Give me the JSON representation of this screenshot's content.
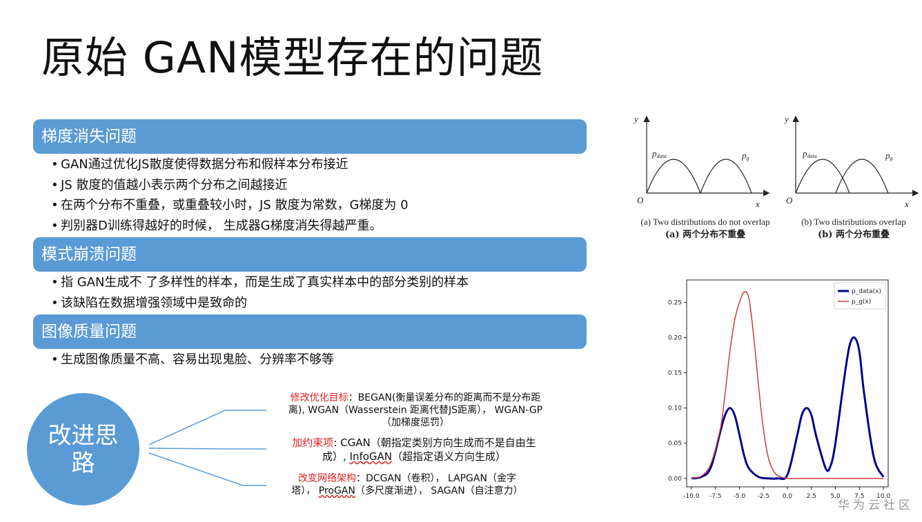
{
  "title": "原始 GAN模型存在的问题",
  "sections": [
    {
      "heading": "梯度消失问题",
      "bullets": [
        "GAN通过优化JS散度使得数据分布和假样本分布接近",
        "JS 散度的值越小表示两个分布之间越接近",
        "在两个分布不重叠，或重叠较小时，JS 散度为常数，G梯度为 0",
        "判别器D训练得越好的时候， 生成器G梯度消失得越严重。"
      ]
    },
    {
      "heading": "模式崩溃问题",
      "bullets": [
        "指 GAN生成不 了多样性的样本，而是生成了真实样本中的部分类别的样本",
        "该缺陷在数据增强领域中是致命的"
      ]
    },
    {
      "heading": "图像质量问题",
      "bullets": [
        "生成图像质量不高、容易出现鬼脸、分辨率不够等"
      ]
    }
  ],
  "improve": {
    "label": "改进思路",
    "branches": [
      {
        "key": "修改优化目标",
        "line1": "：BEGAN(衡量误差分布的距离而不是分布距",
        "line2": "离), WGAN（Wasserstein 距离代替JS距离）， WGAN-GP",
        "line3": "（加梯度惩罚）"
      },
      {
        "key": "加约束项",
        "line1": ": CGAN（朝指定类别方向生成而不是自由生",
        "line2a": "成）, ",
        "line2u": "InfoGAN",
        "line2b": "（超指定语义方向生成）"
      },
      {
        "key": "改变网络架构",
        "line1": "：DCGAN（卷积）， LAPGAN（金字",
        "line2a": "塔）， ",
        "line2u": "ProGAN",
        "line2b": "（多尺度渐进）， SAGAN（自注意力）"
      }
    ]
  },
  "overlap_figure": {
    "panel_a": {
      "y": "y",
      "x": "x",
      "origin": "O",
      "p_data": "p",
      "p_data_sub": "data",
      "p_g": "p",
      "p_g_sub": "g",
      "caption_en": "(a) Two distributions do not overlap",
      "caption_zh": "(a) 两个分布不重叠"
    },
    "panel_b": {
      "y": "y",
      "x": "x",
      "origin": "O",
      "p_data": "p",
      "p_data_sub": "data",
      "p_g": "p",
      "p_g_sub": "g",
      "caption_en": "(b) Two distributions overlap",
      "caption_zh": "(b) 两个分布重叠"
    }
  },
  "chart_data": {
    "type": "line",
    "xlim": [
      -10.5,
      10.5
    ],
    "ylim": [
      -0.012,
      0.282
    ],
    "x_ticks": [
      "-10.0",
      "-7.5",
      "-5.0",
      "-2.5",
      "0.0",
      "2.5",
      "5.0",
      "7.5",
      "10.0"
    ],
    "y_ticks": [
      "0.00",
      "0.05",
      "0.10",
      "0.15",
      "0.20",
      "0.25"
    ],
    "legend_position": "top-right",
    "series": [
      {
        "name": "p_data(x)",
        "color": "#00008b",
        "x": [
          -10,
          -9,
          -8,
          -7,
          -6.5,
          -6,
          -5.5,
          -5,
          -4.5,
          -4,
          -3,
          -2,
          -1,
          0,
          1,
          1.5,
          2,
          2.5,
          3,
          4,
          4.5,
          5,
          6,
          6.5,
          7,
          7.5,
          8,
          9,
          10
        ],
        "y": [
          0.0,
          0.002,
          0.015,
          0.066,
          0.09,
          0.1,
          0.09,
          0.062,
          0.032,
          0.014,
          0.002,
          0.0,
          0.0,
          0.005,
          0.06,
          0.09,
          0.1,
          0.09,
          0.06,
          0.014,
          0.018,
          0.05,
          0.15,
          0.19,
          0.2,
          0.18,
          0.12,
          0.03,
          0.002
        ]
      },
      {
        "name": "p_g(x)",
        "color": "#c83c3c",
        "x": [
          -10,
          -9,
          -8,
          -7,
          -6.5,
          -6,
          -5.5,
          -5,
          -4.5,
          -4,
          -3.5,
          -3,
          -2.5,
          -2,
          -1.5,
          -1,
          0,
          2,
          5,
          10
        ],
        "y": [
          0.0,
          0.003,
          0.02,
          0.07,
          0.12,
          0.18,
          0.225,
          0.25,
          0.265,
          0.255,
          0.2,
          0.13,
          0.07,
          0.03,
          0.012,
          0.004,
          0.0,
          0.0,
          0.0,
          0.0
        ]
      }
    ]
  },
  "watermark": "华为云社区"
}
